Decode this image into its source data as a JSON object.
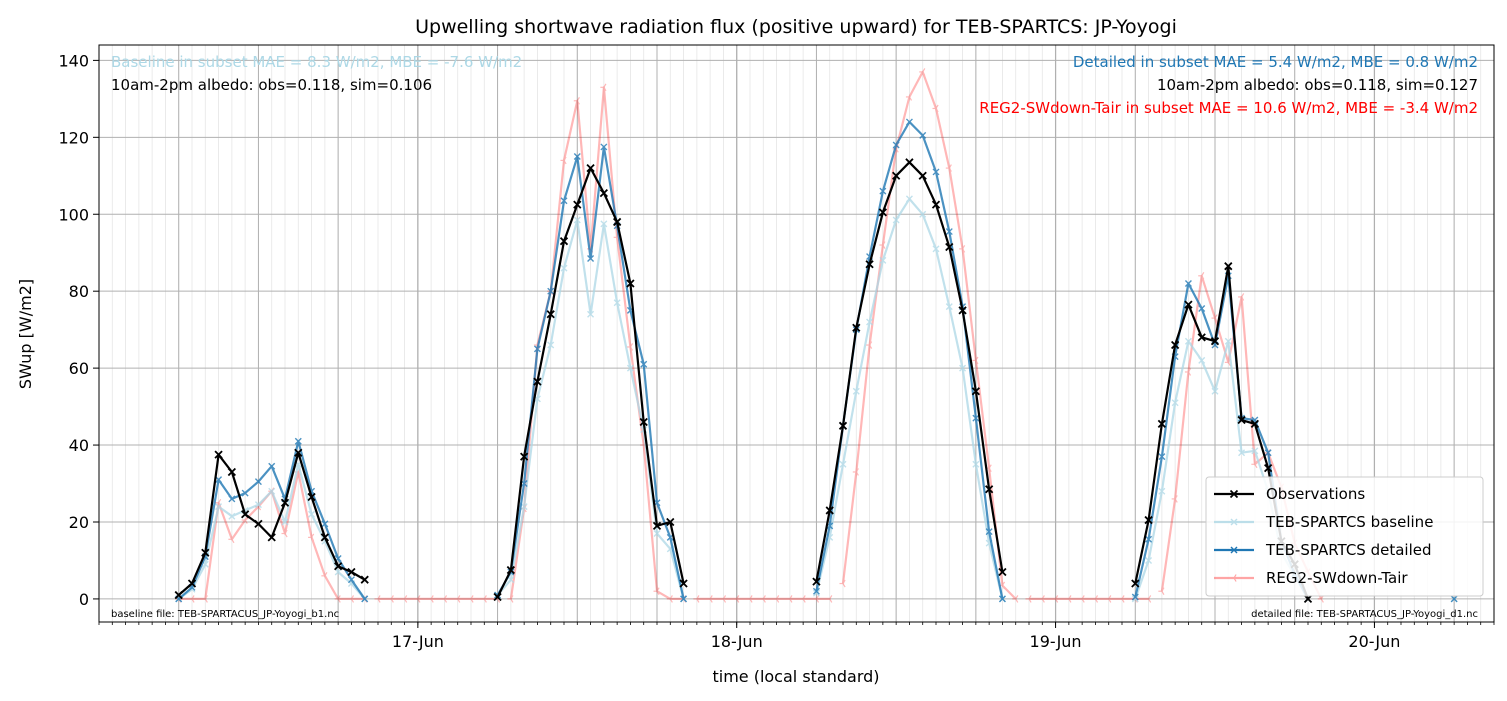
{
  "chart_data": {
    "type": "line",
    "title": "Upwelling shortwave radiation flux (positive upward) for TEB-SPARTCS: JP-Yoyogi",
    "xlabel": "time (local standard)",
    "ylabel": "SWup [W/m2]",
    "xlim": [
      "2023-06-16T00:00",
      "2023-06-20T09:00"
    ],
    "ylim": [
      -6,
      144
    ],
    "yticks": [
      0,
      20,
      40,
      60,
      80,
      100,
      120,
      140
    ],
    "xticks": [
      {
        "t": "2023-06-17T00:00",
        "label": "17-Jun"
      },
      {
        "t": "2023-06-18T00:00",
        "label": "18-Jun"
      },
      {
        "t": "2023-06-19T00:00",
        "label": "19-Jun"
      },
      {
        "t": "2023-06-20T00:00",
        "label": "20-Jun"
      }
    ],
    "grid": true,
    "legend": "lower-right",
    "x_step_hours": 1,
    "annotations": {
      "baseline_metrics": "Baseline in subset MAE = 8.3 W/m2, MBE = -7.6 W/m2",
      "baseline_albedo": "10am-2pm albedo: obs=0.118, sim=0.106",
      "detailed_metrics": "Detailed in subset MAE = 5.4 W/m2, MBE = 0.8 W/m2",
      "detailed_albedo": "10am-2pm albedo: obs=0.118, sim=0.127",
      "reg2_metrics": "REG2-SWdown-Tair in subset MAE = 10.6 W/m2, MBE = -3.4 W/m2",
      "baseline_file": "baseline file: TEB-SPARTACUS_JP-Yoyogi_b1.nc",
      "detailed_file": "detailed file: TEB-SPARTACUS_JP-Yoyogi_d1.nc"
    },
    "colors": {
      "observations": "#000000",
      "baseline": "#add8e6",
      "detailed": "#1f77b4",
      "reg2": "#ff0000",
      "grid_major": "#b0b0b0",
      "grid_minor": "#e6e6e6"
    },
    "series": [
      {
        "name": "Observations",
        "segments": [
          {
            "start": "2023-06-16T06:00",
            "values": [
              1,
              4,
              12,
              37.5,
              33,
              22,
              19.5,
              16,
              25,
              38,
              26.5,
              16,
              8.5,
              7,
              5
            ]
          },
          {
            "start": "2023-06-17T06:00",
            "values": [
              0.5,
              7.5,
              37,
              56.5,
              74,
              93,
              102.5,
              112,
              105.5,
              98,
              82,
              46,
              19,
              20,
              4
            ]
          },
          {
            "start": "2023-06-18T06:00",
            "values": [
              4.5,
              23,
              45,
              70.5,
              87,
              100.5,
              110,
              113.5,
              110,
              102.5,
              91.5,
              75,
              54,
              28.5,
              7
            ]
          },
          {
            "start": "2023-06-19T06:00",
            "values": [
              4,
              20.5,
              45.5,
              66,
              76.5,
              68,
              67,
              86.5,
              46.5,
              45.5,
              34,
              15,
              9,
              0
            ]
          }
        ]
      },
      {
        "name": "TEB-SPARTCS baseline",
        "segments": [
          {
            "start": "2023-06-16T06:00",
            "values": [
              0,
              2.5,
              9,
              24,
              21.5,
              23,
              24.5,
              28,
              20,
              35,
              22,
              15,
              7,
              4,
              0
            ]
          },
          {
            "start": "2023-06-17T06:00",
            "values": [
              1,
              5,
              24,
              52,
              66,
              86,
              98.5,
              74,
              97.5,
              77,
              60,
              44,
              17,
              13,
              0
            ]
          },
          {
            "start": "2023-06-18T06:00",
            "values": [
              1.5,
              16,
              35,
              54,
              72,
              88,
              98.5,
              104,
              100,
              91,
              76,
              60,
              35,
              14.5,
              0
            ]
          },
          {
            "start": "2023-06-19T06:00",
            "values": [
              0,
              10,
              28,
              51,
              67,
              62,
              54,
              67,
              38,
              38.5,
              28,
              12,
              6,
              0
            ]
          },
          {
            "start": "2023-06-20T06:00",
            "values": [
              0
            ]
          }
        ]
      },
      {
        "name": "TEB-SPARTCS detailed",
        "segments": [
          {
            "start": "2023-06-16T06:00",
            "values": [
              0,
              3,
              11,
              31,
              26,
              27.5,
              30.5,
              34.5,
              26,
              41,
              28,
              19.5,
              10.5,
              5,
              0
            ]
          },
          {
            "start": "2023-06-17T06:00",
            "values": [
              1,
              7,
              30,
              65,
              80,
              103.5,
              115,
              88.5,
              117.5,
              97,
              75,
              61,
              25,
              16,
              0
            ]
          },
          {
            "start": "2023-06-18T06:00",
            "values": [
              2,
              19,
              45,
              70,
              89,
              106,
              118,
              124,
              120.5,
              111,
              95.5,
              76,
              47,
              17.5,
              0
            ]
          },
          {
            "start": "2023-06-19T06:00",
            "values": [
              0.5,
              15.5,
              37,
              63,
              82,
              75.5,
              66,
              84,
              47,
              46.5,
              38,
              15,
              6.5,
              0
            ]
          },
          {
            "start": "2023-06-20T06:00",
            "values": [
              0
            ]
          }
        ]
      },
      {
        "name": "REG2-SWdown-Tair",
        "segments": [
          {
            "start": "2023-06-16T06:00",
            "values": [
              0,
              0,
              0,
              25,
              15.5,
              20.5,
              24,
              28,
              17,
              33,
              16,
              6,
              0,
              0,
              0
            ]
          },
          {
            "start": "2023-06-16T21:00",
            "values": [
              0,
              0,
              0,
              0,
              0,
              0,
              0,
              0,
              0,
              0
            ]
          },
          {
            "start": "2023-06-17T07:00",
            "values": [
              0,
              23.5,
              66,
              80,
              114,
              129.5,
              91,
              133,
              94,
              65.5,
              40,
              2,
              0,
              0
            ]
          },
          {
            "start": "2023-06-17T21:00",
            "values": [
              0,
              0,
              0,
              0,
              0,
              0,
              0,
              0,
              0,
              0,
              0
            ]
          },
          {
            "start": "2023-06-18T08:00",
            "values": [
              4,
              33,
              66,
              92,
              117,
              130.5,
              137,
              127.5,
              112,
              91,
              62,
              34,
              3.5,
              0
            ]
          },
          {
            "start": "2023-06-18T22:00",
            "values": [
              0,
              0,
              0,
              0,
              0,
              0,
              0,
              0,
              0,
              0
            ]
          },
          {
            "start": "2023-06-19T08:00",
            "values": [
              2,
              26,
              59,
              84,
              73,
              61.5,
              78.5,
              35,
              38,
              29,
              14.5,
              7,
              0
            ]
          }
        ]
      }
    ]
  }
}
